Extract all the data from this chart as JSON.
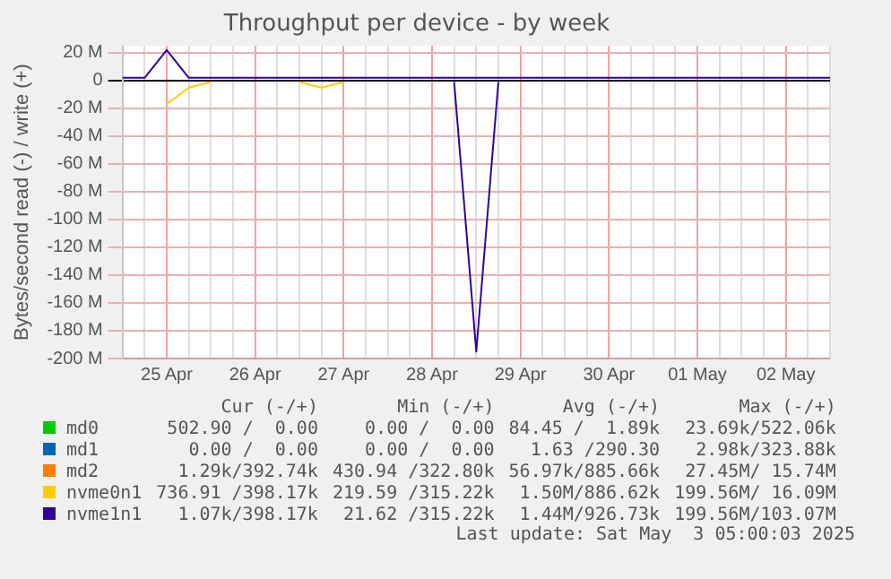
{
  "chart_data": {
    "type": "line",
    "title": "Throughput per device - by week",
    "ylabel": "Bytes/second read (-) / write (+)",
    "categories": [
      null,
      null,
      "25 Apr",
      null,
      null,
      null,
      "26 Apr",
      null,
      null,
      null,
      "27 Apr",
      null,
      null,
      null,
      "28 Apr",
      null,
      null,
      null,
      "29 Apr",
      null,
      null,
      null,
      "30 Apr",
      null,
      null,
      null,
      "01 May",
      null,
      null,
      null,
      "02 May",
      null,
      null
    ],
    "ylim": [
      -200,
      25
    ],
    "yticks": [
      {
        "value": -200,
        "label": "-200 M"
      },
      {
        "value": -180,
        "label": "-180 M"
      },
      {
        "value": -160,
        "label": "-160 M"
      },
      {
        "value": -140,
        "label": "-140 M"
      },
      {
        "value": -120,
        "label": "-120 M"
      },
      {
        "value": -100,
        "label": "-100 M"
      },
      {
        "value": -80,
        "label": "-80 M"
      },
      {
        "value": -60,
        "label": "-60 M"
      },
      {
        "value": -40,
        "label": "-40 M"
      },
      {
        "value": -20,
        "label": "-20 M"
      },
      0,
      {
        "value": 20,
        "label": "20 M"
      }
    ],
    "grid": true,
    "legend": "bottom",
    "series": [
      {
        "name": "md0",
        "color": "#00cc00",
        "values": [
          null,
          null,
          null,
          null,
          null,
          null,
          null,
          null,
          null,
          null,
          null,
          null,
          null,
          null,
          null,
          null,
          null,
          null,
          null,
          null,
          null,
          null,
          null,
          null,
          null,
          null,
          null,
          null,
          null,
          null,
          null,
          null,
          null
        ]
      },
      {
        "name": "md1",
        "color": "#0066b3",
        "values": [
          null,
          null,
          null,
          null,
          null,
          null,
          null,
          null,
          null,
          null,
          null,
          null,
          null,
          null,
          null,
          null,
          null,
          null,
          null,
          null,
          null,
          null,
          null,
          null,
          null,
          null,
          null,
          null,
          null,
          null,
          null,
          null,
          null
        ]
      },
      {
        "name": "md2",
        "color": "#ff8000",
        "values": [
          null,
          null,
          null,
          null,
          null,
          null,
          null,
          null,
          null,
          null,
          null,
          null,
          null,
          null,
          null,
          null,
          null,
          null,
          null,
          null,
          null,
          null,
          null,
          null,
          null,
          null,
          null,
          null,
          null,
          null,
          null,
          null,
          null
        ]
      },
      {
        "name": "nvme0n1",
        "color": "#ffcc00",
        "values": [
          null,
          null,
          -17,
          -5,
          -1,
          null,
          null,
          null,
          -1,
          -5,
          -1,
          null,
          null,
          null,
          null,
          null,
          null,
          null,
          null,
          null,
          null,
          null,
          null,
          null,
          null,
          null,
          null,
          null,
          null,
          null,
          null,
          null,
          null
        ]
      },
      {
        "name": "nvme1n1",
        "color": "#330099",
        "values": [
          2,
          2,
          22,
          2,
          2,
          2,
          2,
          2,
          2,
          2,
          2,
          2,
          2,
          2,
          2,
          2,
          2,
          2,
          2,
          2,
          2,
          2,
          2,
          2,
          2,
          2,
          2,
          2,
          2,
          2,
          2,
          2,
          2
        ]
      },
      {
        "color": "#330099",
        "values": [
          null,
          null,
          null,
          null,
          null,
          null,
          null,
          null,
          null,
          null,
          null,
          null,
          null,
          null,
          null,
          -1,
          -195,
          -1,
          null,
          null,
          null,
          null,
          null,
          null,
          null,
          null,
          null,
          null,
          null,
          null,
          null,
          null,
          null
        ]
      }
    ],
    "annotations": [
      "Cur (-/+)",
      "Min (-/+)",
      "Avg (-/+)",
      "Max (-/+)",
      "502.90 /  0.00",
      "0.00 /  0.00",
      "84.45 /  1.89k",
      "23.69k/522.06k",
      "0.00 /  0.00",
      "0.00 /  0.00",
      "1.63 /290.30",
      "2.98k/323.88k",
      "1.29k/392.74k",
      "430.94 /322.80k",
      "56.97k/885.66k",
      "27.45M/ 15.74M",
      "736.91 /398.17k",
      "219.59 /315.22k",
      "1.50M/886.62k",
      "199.56M/ 16.09M",
      "1.07k/398.17k",
      "21.62 /315.22k",
      "1.44M/926.73k",
      "199.56M/103.07M",
      "Last update: Sat May  3 05:00:03 2025"
    ]
  }
}
